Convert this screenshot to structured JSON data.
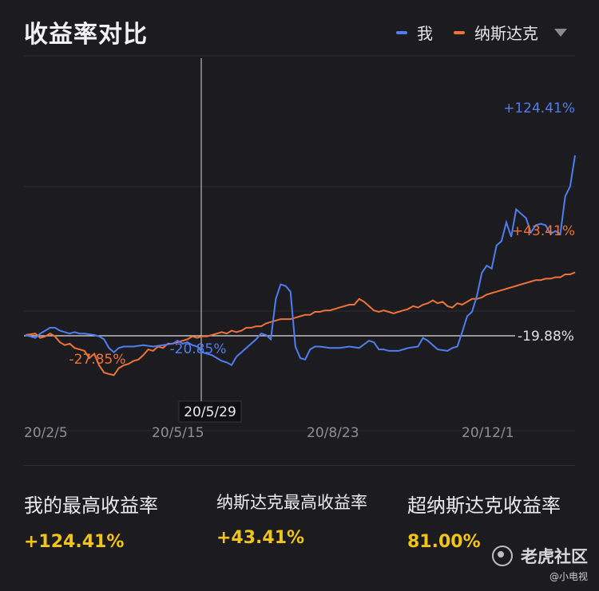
{
  "title": "收益率对比",
  "legend": {
    "series": [
      {
        "label": "我",
        "color": "#4f7df0"
      },
      {
        "label": "纳斯达克",
        "color": "#ef7236"
      }
    ],
    "dropdown_icon": "triangle-down-icon"
  },
  "chart_data": {
    "type": "line",
    "x_ticks": [
      "20/2/5",
      "20/5/15",
      "20/8/23",
      "20/12/1"
    ],
    "baseline_label": "-19.88%",
    "crosshair_label": "20/5/29",
    "annotations": {
      "me_max": "+124.41%",
      "nasdaq_max": "+43.41%",
      "me_min": "-20.85%",
      "nasdaq_min": "-27.85%"
    },
    "series": [
      {
        "name": "我",
        "color": "#4f7df0",
        "points": [
          [
            0,
            0
          ],
          [
            2,
            -2
          ],
          [
            3,
            1
          ],
          [
            4,
            3
          ],
          [
            5,
            5
          ],
          [
            6,
            5
          ],
          [
            7,
            3
          ],
          [
            8,
            2
          ],
          [
            9,
            1
          ],
          [
            10,
            2
          ],
          [
            11,
            1
          ],
          [
            12,
            1
          ],
          [
            14,
            0
          ],
          [
            15,
            -1
          ],
          [
            16,
            -3
          ],
          [
            17,
            -9
          ],
          [
            18,
            -12
          ],
          [
            19,
            -9
          ],
          [
            20,
            -8
          ],
          [
            22,
            -8
          ],
          [
            24,
            -7
          ],
          [
            26,
            -8
          ],
          [
            28,
            -7
          ],
          [
            30,
            -6
          ],
          [
            31,
            -4
          ],
          [
            32,
            -6
          ],
          [
            33,
            -5
          ],
          [
            34,
            -7
          ],
          [
            35,
            -8
          ],
          [
            36,
            -12
          ],
          [
            37,
            -13
          ],
          [
            38,
            -14
          ],
          [
            39,
            -16
          ],
          [
            40,
            -18
          ],
          [
            41,
            -19
          ],
          [
            42,
            -20.85
          ],
          [
            43,
            -15
          ],
          [
            44,
            -12
          ],
          [
            45,
            -9
          ],
          [
            46,
            -6
          ],
          [
            47,
            -3
          ],
          [
            48,
            1
          ],
          [
            49,
            0
          ],
          [
            50,
            -3
          ],
          [
            51,
            25
          ],
          [
            52,
            35
          ],
          [
            53,
            34
          ],
          [
            54,
            30
          ],
          [
            55,
            -8
          ],
          [
            56,
            -16
          ],
          [
            57,
            -17
          ],
          [
            58,
            -10
          ],
          [
            59,
            -8
          ],
          [
            60,
            -8
          ],
          [
            62,
            -9
          ],
          [
            64,
            -9
          ],
          [
            66,
            -8
          ],
          [
            68,
            -9
          ],
          [
            70,
            -4
          ],
          [
            71,
            -5
          ],
          [
            72,
            -10
          ],
          [
            73,
            -10
          ],
          [
            74,
            -11
          ],
          [
            76,
            -11
          ],
          [
            78,
            -9
          ],
          [
            80,
            -8
          ],
          [
            81,
            -2
          ],
          [
            82,
            -4
          ],
          [
            83,
            -7
          ],
          [
            84,
            -10
          ],
          [
            86,
            -11
          ],
          [
            87,
            -9
          ],
          [
            88,
            -8
          ],
          [
            89,
            2
          ],
          [
            90,
            13
          ],
          [
            91,
            16
          ],
          [
            92,
            27
          ],
          [
            93,
            43
          ],
          [
            94,
            48
          ],
          [
            95,
            46
          ],
          [
            96,
            62
          ],
          [
            97,
            65
          ],
          [
            98,
            78
          ],
          [
            99,
            68
          ],
          [
            100,
            87
          ],
          [
            101,
            84
          ],
          [
            102,
            81
          ],
          [
            103,
            71
          ],
          [
            104,
            76
          ],
          [
            105,
            77
          ],
          [
            106,
            76
          ],
          [
            107,
            70
          ],
          [
            108,
            72
          ],
          [
            109,
            70
          ],
          [
            110,
            96
          ],
          [
            111,
            103
          ],
          [
            112,
            124.41
          ]
        ]
      },
      {
        "name": "纳斯达克",
        "color": "#ef7236",
        "points": [
          [
            0,
            0
          ],
          [
            2,
            1
          ],
          [
            3,
            -2
          ],
          [
            4,
            -1
          ],
          [
            5,
            1
          ],
          [
            6,
            -1
          ],
          [
            7,
            -5
          ],
          [
            8,
            -7
          ],
          [
            9,
            -6
          ],
          [
            10,
            -9
          ],
          [
            11,
            -10
          ],
          [
            12,
            -11
          ],
          [
            13,
            -16
          ],
          [
            14,
            -13
          ],
          [
            15,
            -21
          ],
          [
            16,
            -26
          ],
          [
            17,
            -27
          ],
          [
            18,
            -27.85
          ],
          [
            19,
            -23
          ],
          [
            20,
            -21
          ],
          [
            21,
            -20
          ],
          [
            22,
            -18
          ],
          [
            23,
            -17
          ],
          [
            24,
            -14
          ],
          [
            25,
            -10
          ],
          [
            26,
            -11
          ],
          [
            27,
            -8
          ],
          [
            28,
            -9
          ],
          [
            29,
            -6
          ],
          [
            30,
            -6
          ],
          [
            31,
            -5
          ],
          [
            32,
            -4
          ],
          [
            33,
            -3
          ],
          [
            34,
            -1
          ],
          [
            35,
            -2
          ],
          [
            36,
            -1
          ],
          [
            37,
            -1
          ],
          [
            38,
            0
          ],
          [
            39,
            1
          ],
          [
            40,
            2
          ],
          [
            41,
            1
          ],
          [
            42,
            3
          ],
          [
            43,
            2
          ],
          [
            44,
            3
          ],
          [
            45,
            5
          ],
          [
            46,
            5
          ],
          [
            47,
            6
          ],
          [
            48,
            6
          ],
          [
            49,
            8
          ],
          [
            50,
            9
          ],
          [
            51,
            10
          ],
          [
            52,
            11
          ],
          [
            53,
            11
          ],
          [
            54,
            11
          ],
          [
            55,
            12
          ],
          [
            56,
            13
          ],
          [
            57,
            14
          ],
          [
            58,
            14
          ],
          [
            59,
            16
          ],
          [
            60,
            16
          ],
          [
            61,
            17
          ],
          [
            62,
            17
          ],
          [
            63,
            18
          ],
          [
            64,
            19
          ],
          [
            65,
            20
          ],
          [
            66,
            21
          ],
          [
            67,
            21
          ],
          [
            68,
            25
          ],
          [
            69,
            23
          ],
          [
            70,
            20
          ],
          [
            71,
            17
          ],
          [
            72,
            16
          ],
          [
            73,
            17
          ],
          [
            74,
            16
          ],
          [
            75,
            15
          ],
          [
            76,
            16
          ],
          [
            77,
            17
          ],
          [
            78,
            18
          ],
          [
            79,
            20
          ],
          [
            80,
            19
          ],
          [
            81,
            21
          ],
          [
            82,
            22
          ],
          [
            83,
            24
          ],
          [
            84,
            22
          ],
          [
            85,
            23
          ],
          [
            86,
            20
          ],
          [
            87,
            19
          ],
          [
            88,
            22
          ],
          [
            89,
            21
          ],
          [
            90,
            23
          ],
          [
            91,
            25
          ],
          [
            92,
            25
          ],
          [
            93,
            26
          ],
          [
            94,
            28
          ],
          [
            95,
            29
          ],
          [
            96,
            30
          ],
          [
            97,
            31
          ],
          [
            98,
            32
          ],
          [
            99,
            33
          ],
          [
            100,
            34
          ],
          [
            101,
            35
          ],
          [
            102,
            36
          ],
          [
            103,
            37
          ],
          [
            104,
            38
          ],
          [
            105,
            38
          ],
          [
            106,
            39
          ],
          [
            107,
            39
          ],
          [
            108,
            40
          ],
          [
            109,
            40
          ],
          [
            110,
            42
          ],
          [
            111,
            42
          ],
          [
            112,
            43.41
          ]
        ]
      }
    ]
  },
  "stats": [
    {
      "label": "我的最高收益率",
      "value": "+124.41%"
    },
    {
      "label": "纳斯达克最高收益率",
      "value": "+43.41%"
    },
    {
      "label": "超纳斯达克收益率",
      "value": "81.00%"
    }
  ],
  "watermark": {
    "text": "老虎社区",
    "sub": "@小电视"
  }
}
